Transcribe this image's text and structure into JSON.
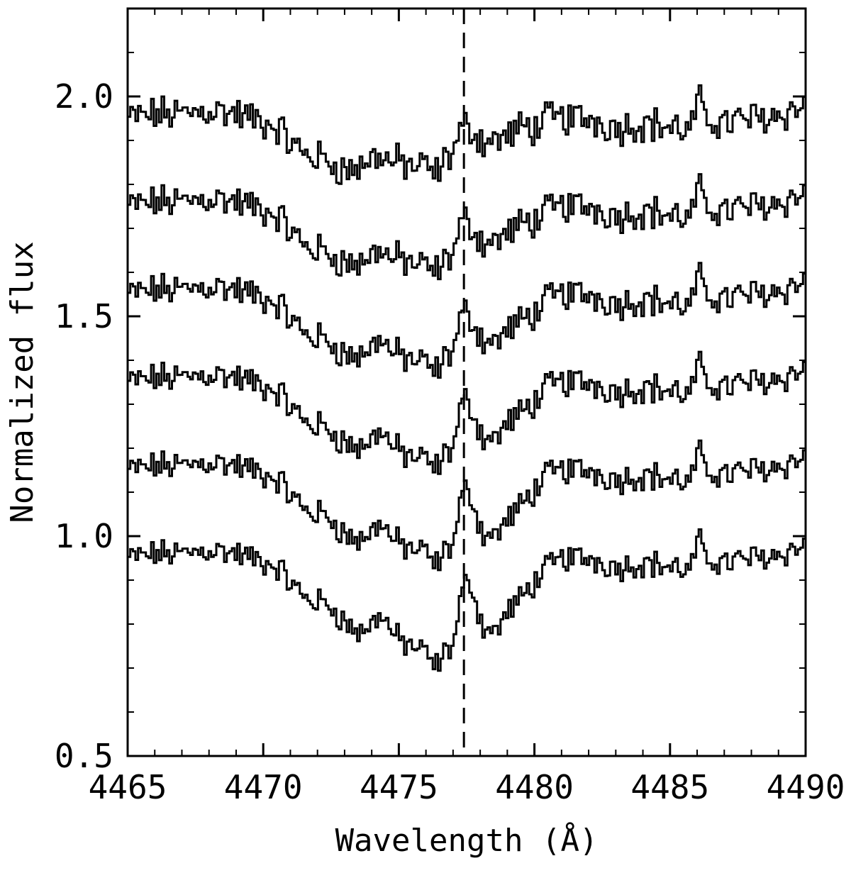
{
  "chart_data": {
    "type": "line",
    "title": "",
    "xlabel": "Wavelength (Å)",
    "ylabel": "Normalized flux",
    "xlim": [
      4465,
      4490
    ],
    "ylim": [
      0.5,
      2.2
    ],
    "x_ticks": [
      4465,
      4470,
      4475,
      4480,
      4485,
      4490
    ],
    "x_tick_labels": [
      "4465",
      "4470",
      "4475",
      "4480",
      "4485",
      "4490"
    ],
    "y_ticks": [
      0.5,
      1.0,
      1.5,
      2.0
    ],
    "y_tick_labels": [
      "0.5",
      "1.0",
      "1.5",
      "2.0"
    ],
    "grid": false,
    "reference_line": {
      "x": 4477.4,
      "style": "dashed"
    },
    "x": [
      4465.0,
      4466.0,
      4467.0,
      4468.0,
      4469.0,
      4470.0,
      4470.5,
      4471.0,
      4471.5,
      4472.0,
      4472.5,
      4473.0,
      4473.5,
      4474.0,
      4474.3,
      4474.6,
      4475.0,
      4475.5,
      4476.0,
      4476.3,
      4476.6,
      4477.0,
      4477.3,
      4477.6,
      4478.0,
      4478.5,
      4479.0,
      4479.5,
      4480.0,
      4480.5,
      4481.0,
      4482.0,
      4483.0,
      4484.0,
      4485.0,
      4485.7,
      4486.0,
      4486.3,
      4487.0,
      4488.0,
      4489.0,
      4490.0
    ],
    "series": [
      {
        "values": [
          0.95,
          0.96,
          0.96,
          0.97,
          0.96,
          0.94,
          0.93,
          0.89,
          0.86,
          0.85,
          0.84,
          0.8,
          0.78,
          0.8,
          0.83,
          0.79,
          0.76,
          0.75,
          0.73,
          0.7,
          0.73,
          0.76,
          0.88,
          0.9,
          0.8,
          0.78,
          0.83,
          0.86,
          0.9,
          0.93,
          0.95,
          0.95,
          0.93,
          0.94,
          0.93,
          0.92,
          0.99,
          0.95,
          0.94,
          0.95,
          0.96,
          0.98
        ]
      },
      {
        "values": [
          1.15,
          1.16,
          1.16,
          1.17,
          1.16,
          1.14,
          1.13,
          1.09,
          1.06,
          1.05,
          1.04,
          1.0,
          0.99,
          1.01,
          1.04,
          1.0,
          0.98,
          0.97,
          0.96,
          0.93,
          0.96,
          0.99,
          1.1,
          1.1,
          1.01,
          1.0,
          1.04,
          1.07,
          1.11,
          1.14,
          1.15,
          1.15,
          1.13,
          1.14,
          1.13,
          1.12,
          1.19,
          1.15,
          1.14,
          1.15,
          1.16,
          1.18
        ]
      },
      {
        "values": [
          1.35,
          1.36,
          1.36,
          1.37,
          1.36,
          1.34,
          1.33,
          1.29,
          1.26,
          1.25,
          1.24,
          1.21,
          1.2,
          1.22,
          1.25,
          1.21,
          1.19,
          1.18,
          1.17,
          1.15,
          1.18,
          1.21,
          1.31,
          1.3,
          1.23,
          1.22,
          1.26,
          1.28,
          1.31,
          1.34,
          1.35,
          1.35,
          1.33,
          1.34,
          1.33,
          1.32,
          1.39,
          1.35,
          1.34,
          1.35,
          1.36,
          1.38
        ]
      },
      {
        "values": [
          1.55,
          1.56,
          1.56,
          1.57,
          1.56,
          1.54,
          1.53,
          1.49,
          1.46,
          1.45,
          1.44,
          1.41,
          1.41,
          1.43,
          1.46,
          1.42,
          1.41,
          1.4,
          1.39,
          1.37,
          1.4,
          1.43,
          1.51,
          1.5,
          1.45,
          1.44,
          1.47,
          1.49,
          1.51,
          1.54,
          1.55,
          1.55,
          1.53,
          1.54,
          1.53,
          1.52,
          1.59,
          1.55,
          1.54,
          1.55,
          1.56,
          1.58
        ]
      },
      {
        "values": [
          1.75,
          1.76,
          1.76,
          1.77,
          1.76,
          1.74,
          1.73,
          1.69,
          1.66,
          1.65,
          1.64,
          1.62,
          1.62,
          1.64,
          1.66,
          1.63,
          1.63,
          1.62,
          1.61,
          1.6,
          1.62,
          1.65,
          1.72,
          1.71,
          1.67,
          1.67,
          1.69,
          1.71,
          1.72,
          1.74,
          1.75,
          1.75,
          1.73,
          1.74,
          1.73,
          1.72,
          1.79,
          1.75,
          1.74,
          1.75,
          1.76,
          1.78
        ]
      },
      {
        "values": [
          1.95,
          1.96,
          1.96,
          1.97,
          1.96,
          1.94,
          1.93,
          1.89,
          1.87,
          1.86,
          1.85,
          1.83,
          1.84,
          1.86,
          1.87,
          1.85,
          1.85,
          1.84,
          1.84,
          1.82,
          1.85,
          1.88,
          1.93,
          1.93,
          1.9,
          1.9,
          1.91,
          1.93,
          1.93,
          1.95,
          1.95,
          1.95,
          1.93,
          1.94,
          1.93,
          1.92,
          1.99,
          1.95,
          1.94,
          1.95,
          1.96,
          1.98
        ]
      }
    ]
  }
}
